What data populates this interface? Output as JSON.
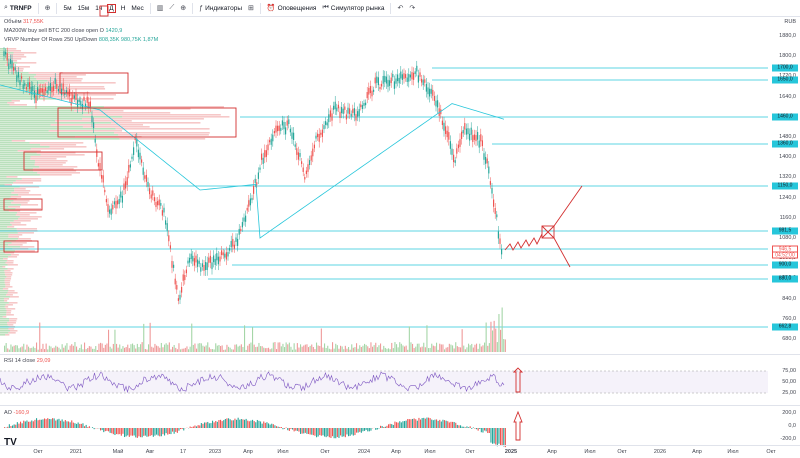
{
  "toolbar": {
    "symbol": "TRNFP",
    "intervals": [
      "5м",
      "15м",
      "1ч",
      "Д",
      "Н",
      "Мес"
    ],
    "indicators_label": "Индикаторы",
    "alerts_label": "Оповещения",
    "replay_label": "Симулятор рынка"
  },
  "legend": {
    "volume_label": "Объём",
    "volume_value": "317,55K",
    "ma_label": "MA200W buy sell BTC 200 close open O",
    "ma_value": "1420,9",
    "vrvp_label": "VRVP Number Of Rows 250 Up/Down",
    "vrvp_values": "808,35K  980,75K  1,87M",
    "rsi_label": "RSI 14 close",
    "rsi_value": "29,09",
    "ao_label": "AO",
    "ao_value": "-160,9"
  },
  "price_axis": {
    "currency": "RUB",
    "ticks": [
      "1880,0",
      "1800,0",
      "1720,0",
      "1640,0",
      "1560,0",
      "1480,0",
      "1400,0",
      "1320,0",
      "1240,0",
      "1160,0",
      "1080,0",
      "1000,0",
      "920,0",
      "840,0",
      "760,0",
      "680,0"
    ],
    "badges": [
      {
        "text": "1700,0",
        "color": "#26c6da"
      },
      {
        "text": "1650,0",
        "color": "#26c6da"
      },
      {
        "text": "1460,0",
        "color": "#26c6da"
      },
      {
        "text": "1360,0",
        "color": "#26c6da"
      },
      {
        "text": "1150,0",
        "color": "#26c6da"
      },
      {
        "text": "981,5",
        "color": "#26c6da"
      },
      {
        "text": "946,5",
        "color": "#ffffff"
      },
      {
        "text": "04:52:00",
        "color": "#ffffff"
      },
      {
        "text": "900,0",
        "color": "#26c6da"
      },
      {
        "text": "880,0",
        "color": "#26c6da"
      },
      {
        "text": "662,8",
        "color": "#26c6da"
      }
    ]
  },
  "rsi_axis": {
    "ticks": [
      "75,00",
      "50,00",
      "25,00"
    ]
  },
  "ao_axis": {
    "ticks": [
      "200,0",
      "0,0",
      "-200,0"
    ]
  },
  "time_axis": [
    "Окт",
    "2021",
    "Май",
    "Авг",
    "17",
    "2023",
    "Апр",
    "Июл",
    "Окт",
    "2024",
    "Апр",
    "Июл",
    "Окт",
    "2025",
    "Апр",
    "Июл",
    "Окт",
    "2026",
    "Апр",
    "Июл",
    "Окт"
  ],
  "colors": {
    "up": "#26a69a",
    "down": "#ef5350",
    "ma": "#26c6da",
    "annotation": "#d32f2f"
  }
}
